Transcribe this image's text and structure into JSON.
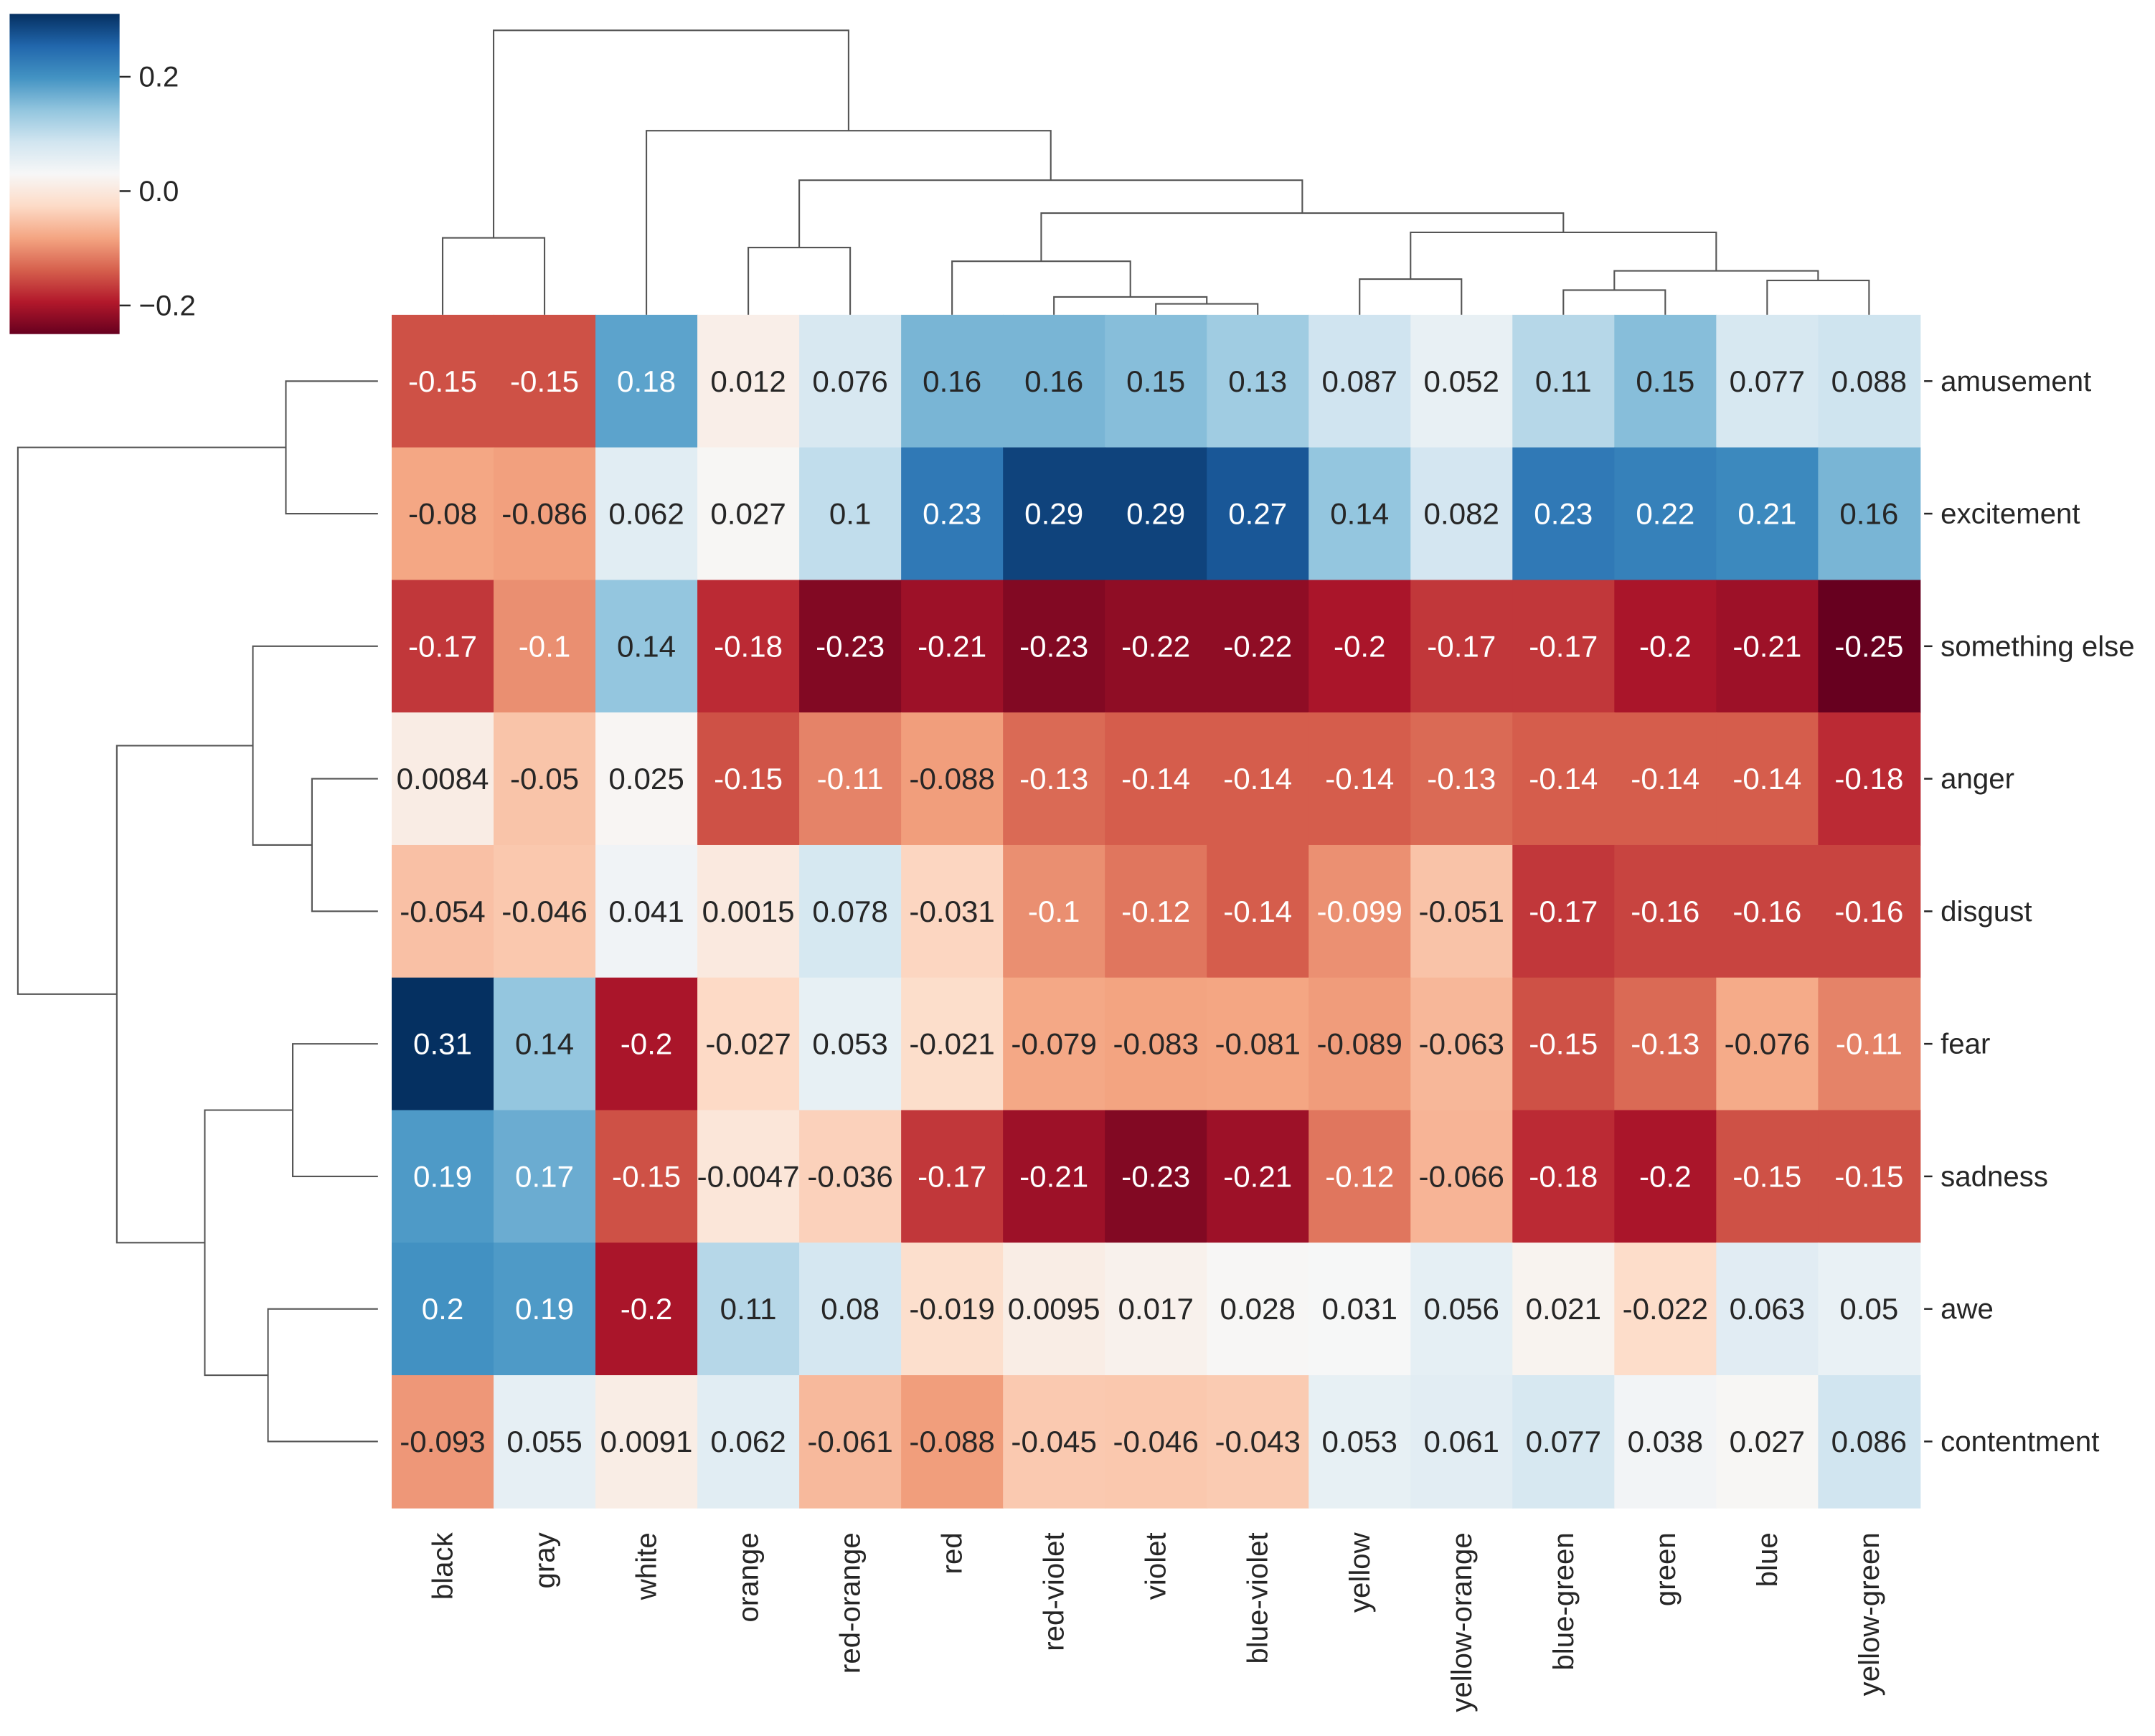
{
  "chart_data": {
    "type": "heatmap",
    "subtype": "clustermap",
    "title": "",
    "rows": [
      "amusement",
      "excitement",
      "something else",
      "anger",
      "disgust",
      "fear",
      "sadness",
      "awe",
      "contentment"
    ],
    "columns": [
      "black",
      "gray",
      "white",
      "orange",
      "red-orange",
      "red",
      "red-violet",
      "violet",
      "blue-violet",
      "yellow",
      "yellow-orange",
      "blue-green",
      "green",
      "blue",
      "yellow-green"
    ],
    "values": [
      [
        -0.15,
        -0.15,
        0.18,
        0.012,
        0.076,
        0.16,
        0.16,
        0.15,
        0.13,
        0.087,
        0.052,
        0.11,
        0.15,
        0.077,
        0.088
      ],
      [
        -0.08,
        -0.086,
        0.062,
        0.027,
        0.1,
        0.23,
        0.29,
        0.29,
        0.27,
        0.14,
        0.082,
        0.23,
        0.22,
        0.21,
        0.16
      ],
      [
        -0.17,
        -0.1,
        0.14,
        -0.18,
        -0.23,
        -0.21,
        -0.23,
        -0.22,
        -0.22,
        -0.2,
        -0.17,
        -0.17,
        -0.2,
        -0.21,
        -0.25
      ],
      [
        0.0084,
        -0.05,
        0.025,
        -0.15,
        -0.11,
        -0.088,
        -0.13,
        -0.14,
        -0.14,
        -0.14,
        -0.13,
        -0.14,
        -0.14,
        -0.14,
        -0.18
      ],
      [
        -0.054,
        -0.046,
        0.041,
        0.0015,
        0.078,
        -0.031,
        -0.1,
        -0.12,
        -0.14,
        -0.099,
        -0.051,
        -0.17,
        -0.16,
        -0.16,
        -0.16
      ],
      [
        0.31,
        0.14,
        -0.2,
        -0.027,
        0.053,
        -0.021,
        -0.079,
        -0.083,
        -0.081,
        -0.089,
        -0.063,
        -0.15,
        -0.13,
        -0.076,
        -0.11
      ],
      [
        0.19,
        0.17,
        -0.15,
        -0.0047,
        -0.036,
        -0.17,
        -0.21,
        -0.23,
        -0.21,
        -0.12,
        -0.066,
        -0.18,
        -0.2,
        -0.15,
        -0.15
      ],
      [
        0.2,
        0.19,
        -0.2,
        0.11,
        0.08,
        -0.019,
        0.0095,
        0.017,
        0.028,
        0.031,
        0.056,
        0.021,
        -0.022,
        0.063,
        0.05
      ],
      [
        -0.093,
        0.055,
        0.0091,
        0.062,
        -0.061,
        -0.088,
        -0.045,
        -0.046,
        -0.043,
        0.053,
        0.061,
        0.077,
        0.038,
        0.027,
        0.086
      ]
    ],
    "colormap": "RdBu_r",
    "vmin": -0.25,
    "vmax": 0.31,
    "colorbar": {
      "ticks": [
        0.2,
        0.0,
        -0.2
      ],
      "tick_labels": [
        "0.2",
        "0.0",
        "−0.2"
      ],
      "placement": "top-left"
    },
    "annotations": true,
    "row_dendrogram": "left",
    "col_dendrogram": "top"
  }
}
